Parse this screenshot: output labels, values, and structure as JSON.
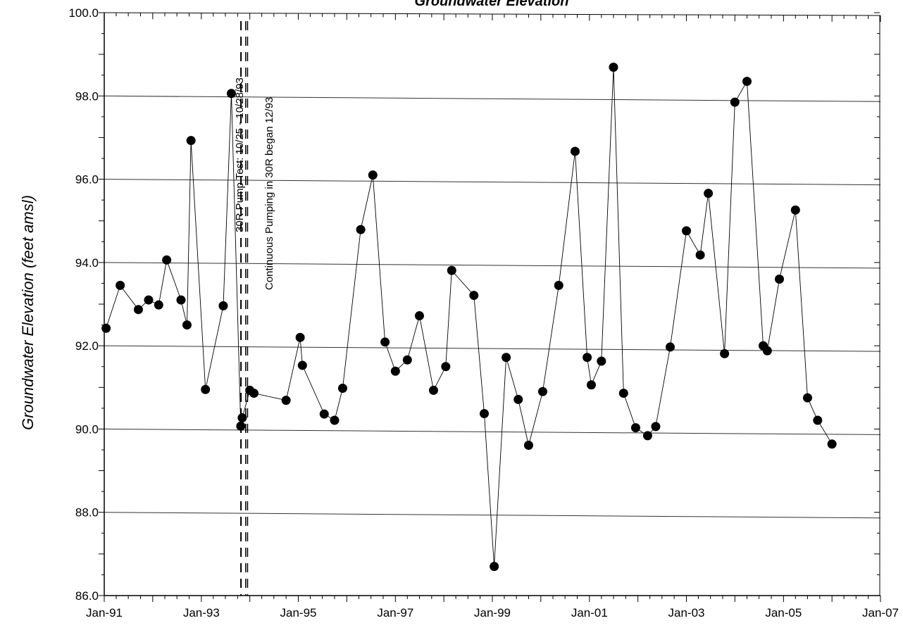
{
  "chart_data": {
    "type": "scatter",
    "title": "Groundwater Elevation",
    "ylabel": "Groundwater Elevation (feet amsl)",
    "xlabel": "",
    "ylim": [
      86.0,
      100.0
    ],
    "yticks": [
      "86.0",
      "88.0",
      "90.0",
      "92.0",
      "94.0",
      "96.0",
      "98.0",
      "100.0"
    ],
    "xlim": [
      "1991-01-01",
      "2007-01-01"
    ],
    "xticks": [
      {
        "date": "1991-01-01",
        "label": "Jan-91"
      },
      {
        "date": "1993-01-01",
        "label": "Jan-93"
      },
      {
        "date": "1995-01-01",
        "label": "Jan-95"
      },
      {
        "date": "1997-01-01",
        "label": "Jan-97"
      },
      {
        "date": "1999-01-01",
        "label": "Jan-99"
      },
      {
        "date": "2001-01-01",
        "label": "Jan-01"
      },
      {
        "date": "2003-01-01",
        "label": "Jan-03"
      },
      {
        "date": "2005-01-01",
        "label": "Jan-05"
      },
      {
        "date": "2007-01-01",
        "label": "Jan-07"
      }
    ],
    "grid": "horizontal",
    "series": [
      {
        "x": [
          "1991-01-15",
          "1991-05-01",
          "1991-09-15",
          "1991-12-01",
          "1992-02-15",
          "1992-04-15",
          "1992-08-01",
          "1992-09-15",
          "1992-10-15",
          "1993-02-01",
          "1993-06-15",
          "1993-08-15",
          "1993-10-25",
          "1993-11-05",
          "1994-01-01",
          "1994-02-01",
          "1994-10-01",
          "1995-01-15",
          "1995-02-01",
          "1995-07-15",
          "1995-10-01",
          "1995-12-01",
          "1996-04-15",
          "1996-07-15",
          "1996-10-15",
          "1997-01-01",
          "1997-04-01",
          "1997-07-01",
          "1997-10-15",
          "1998-01-15",
          "1998-03-01",
          "1998-08-15",
          "1998-11-01",
          "1999-01-15",
          "1999-04-15",
          "1999-07-15",
          "1999-10-01",
          "2000-01-15",
          "2000-05-15",
          "2000-09-15",
          "2000-12-15",
          "2001-01-15",
          "2001-04-01",
          "2001-07-01",
          "2001-09-15",
          "2001-12-15",
          "2002-03-15",
          "2002-05-15",
          "2002-09-01",
          "2003-01-01",
          "2003-04-15",
          "2003-06-15",
          "2003-10-15",
          "2004-01-01",
          "2004-04-01",
          "2004-08-01",
          "2004-09-01",
          "2004-12-01",
          "2005-04-01",
          "2005-07-01",
          "2005-09-15",
          "2006-01-01"
        ],
        "y": [
          92.42,
          93.45,
          92.87,
          93.1,
          92.98,
          94.06,
          93.1,
          92.5,
          96.93,
          90.95,
          92.96,
          98.06,
          90.07,
          90.27,
          90.93,
          90.86,
          90.69,
          92.2,
          91.53,
          90.36,
          90.21,
          90.98,
          94.79,
          96.1,
          92.09,
          91.39,
          91.66,
          92.72,
          90.93,
          91.5,
          93.81,
          93.21,
          90.37,
          86.7,
          91.72,
          90.71,
          89.61,
          90.9,
          93.45,
          96.67,
          91.72,
          91.06,
          91.63,
          98.69,
          90.86,
          90.03,
          89.84,
          90.06,
          91.97,
          94.76,
          94.18,
          95.66,
          91.81,
          97.85,
          98.35,
          92.0,
          91.88,
          93.6,
          95.26,
          90.75,
          90.21,
          89.64
        ]
      }
    ],
    "vlines": [
      {
        "date": "1993-10-25",
        "style": "dashed"
      },
      {
        "date": "1993-10-28",
        "style": "dashed"
      },
      {
        "date": "1993-12-01",
        "style": "dashed"
      },
      {
        "date": "1993-12-15",
        "style": "dashed"
      }
    ],
    "annotations": [
      "30R Pump Test: 10/25 - 10/28/93",
      "Continuous Pumping in 30R began 12/93"
    ]
  }
}
